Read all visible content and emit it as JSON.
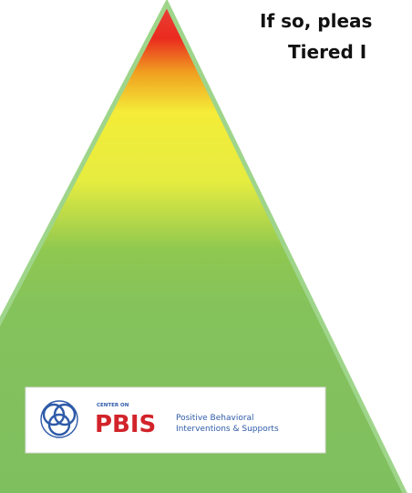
{
  "header": {
    "line1": "If so, pleas",
    "line2": "Tiered I"
  },
  "logo": {
    "eyebrow": "CENTER ON",
    "name": "PBIS",
    "tagline1": "Positive Behavioral",
    "tagline2": "Interventions & Supports"
  }
}
